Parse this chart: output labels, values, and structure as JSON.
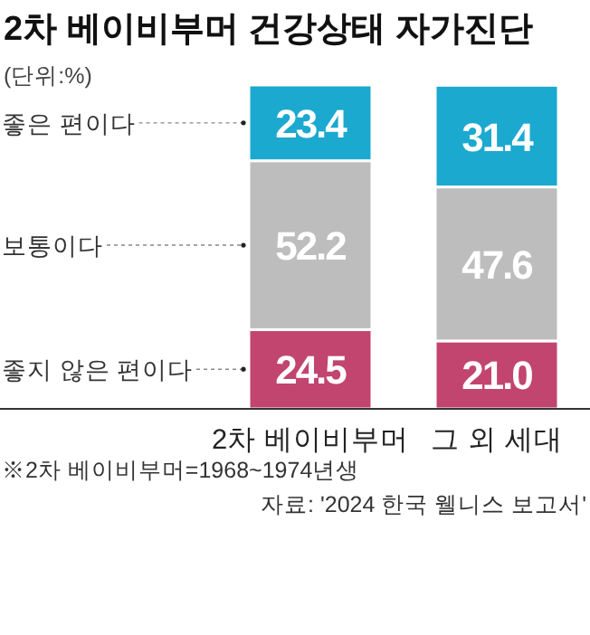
{
  "chart_data": {
    "type": "bar",
    "title": "2차 베이비부머 건강상태 자가진단",
    "subtitle": "(단위:%)",
    "stacked": true,
    "legend": "left",
    "categories": [
      "2차 베이비부머",
      "그 외 세대"
    ],
    "series": [
      {
        "name": "좋지 않은 편이다",
        "color": "#c2456f",
        "values": [
          24.5,
          21.0
        ],
        "value_labels": [
          "24.5",
          "21.0"
        ]
      },
      {
        "name": "보통이다",
        "color": "#bdbdbd",
        "values": [
          52.2,
          47.6
        ],
        "value_labels": [
          "52.2",
          "47.6"
        ]
      },
      {
        "name": "좋은 편이다",
        "color": "#1ba9cf",
        "values": [
          23.4,
          31.4
        ],
        "value_labels": [
          "23.4",
          "31.4"
        ]
      }
    ],
    "annotations": [
      "※2차 베이비부머=1968~1974년생",
      "자료: '2024 한국 웰니스 보고서'"
    ]
  }
}
